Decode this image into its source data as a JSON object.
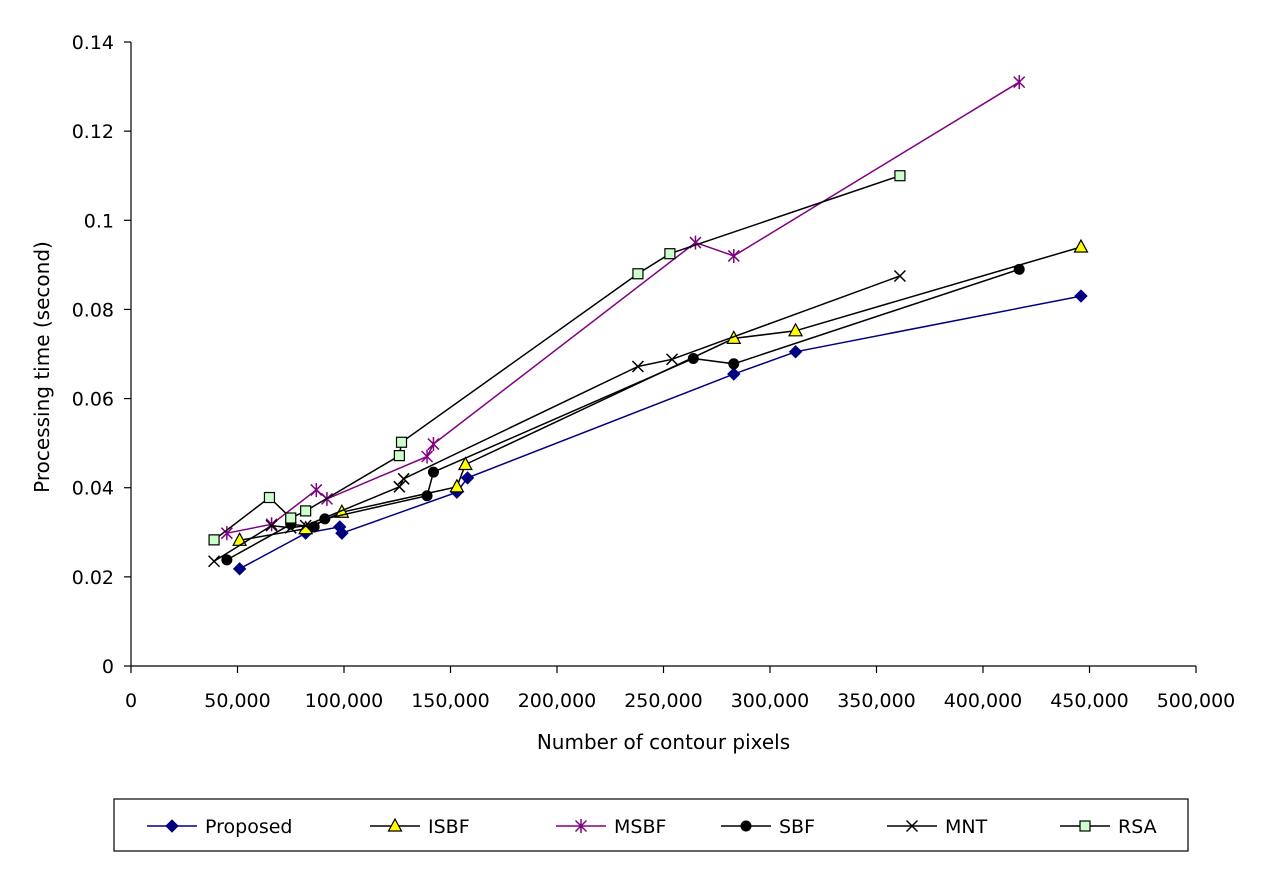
{
  "chart_data": {
    "type": "line",
    "title": "",
    "xlabel": "Number of contour pixels",
    "ylabel": "Processing time (second)",
    "xlim": [
      0,
      500000
    ],
    "ylim": [
      0,
      0.14
    ],
    "xticks": [
      0,
      50000,
      100000,
      150000,
      200000,
      250000,
      300000,
      350000,
      400000,
      450000,
      500000
    ],
    "xtick_labels": [
      "0",
      "50,000",
      "100,000",
      "150,000",
      "200,000",
      "250,000",
      "300,000",
      "350,000",
      "400,000",
      "450,000",
      "500,000"
    ],
    "yticks": [
      0,
      0.02,
      0.04,
      0.06,
      0.08,
      0.1,
      0.12,
      0.14
    ],
    "ytick_labels": [
      "0",
      "0.02",
      "0.04",
      "0.06",
      "0.08",
      "0.1",
      "0.12",
      "0.14"
    ],
    "grid": false,
    "legend_position": "bottom",
    "series": [
      {
        "name": "Proposed",
        "color": "#000080",
        "marker": "diamond",
        "points": [
          [
            51000,
            0.0218
          ],
          [
            82000,
            0.0298
          ],
          [
            98000,
            0.0312
          ],
          [
            99000,
            0.0298
          ],
          [
            153000,
            0.039
          ],
          [
            158000,
            0.0422
          ],
          [
            283000,
            0.0655
          ],
          [
            312000,
            0.0705
          ],
          [
            446000,
            0.083
          ]
        ]
      },
      {
        "name": "ISBF",
        "color": "#000000",
        "marker": "triangle",
        "points": [
          [
            51000,
            0.0282
          ],
          [
            82000,
            0.0308
          ],
          [
            99000,
            0.0345
          ],
          [
            153000,
            0.0402
          ],
          [
            157000,
            0.0452
          ],
          [
            283000,
            0.0735
          ],
          [
            312000,
            0.0752
          ],
          [
            446000,
            0.094
          ]
        ]
      },
      {
        "name": "MSBF",
        "color": "#800080",
        "marker": "star",
        "points": [
          [
            45000,
            0.0298
          ],
          [
            66000,
            0.0318
          ],
          [
            87000,
            0.0395
          ],
          [
            92000,
            0.0375
          ],
          [
            139000,
            0.047
          ],
          [
            142000,
            0.0498
          ],
          [
            265000,
            0.095
          ],
          [
            283000,
            0.092
          ],
          [
            417000,
            0.131
          ]
        ]
      },
      {
        "name": "SBF",
        "color": "#000000",
        "marker": "circle",
        "points": [
          [
            45000,
            0.0238
          ],
          [
            75000,
            0.0318
          ],
          [
            86000,
            0.0312
          ],
          [
            91000,
            0.033
          ],
          [
            139000,
            0.0382
          ],
          [
            142000,
            0.0435
          ],
          [
            264000,
            0.069
          ],
          [
            283000,
            0.0678
          ],
          [
            417000,
            0.089
          ]
        ]
      },
      {
        "name": "MNT",
        "color": "#000000",
        "marker": "x",
        "points": [
          [
            39000,
            0.0235
          ],
          [
            66000,
            0.0315
          ],
          [
            75000,
            0.031
          ],
          [
            82000,
            0.0315
          ],
          [
            126000,
            0.0402
          ],
          [
            128000,
            0.042
          ],
          [
            238000,
            0.0672
          ],
          [
            254000,
            0.0688
          ],
          [
            361000,
            0.0875
          ]
        ]
      },
      {
        "name": "RSA",
        "color": "#000000",
        "marker": "square",
        "fill": "#ccffcc",
        "points": [
          [
            39000,
            0.0283
          ],
          [
            65000,
            0.0378
          ],
          [
            75000,
            0.0332
          ],
          [
            82000,
            0.0348
          ],
          [
            126000,
            0.0472
          ],
          [
            127000,
            0.0502
          ],
          [
            238000,
            0.088
          ],
          [
            253000,
            0.0925
          ],
          [
            361000,
            0.11
          ]
        ]
      }
    ]
  }
}
